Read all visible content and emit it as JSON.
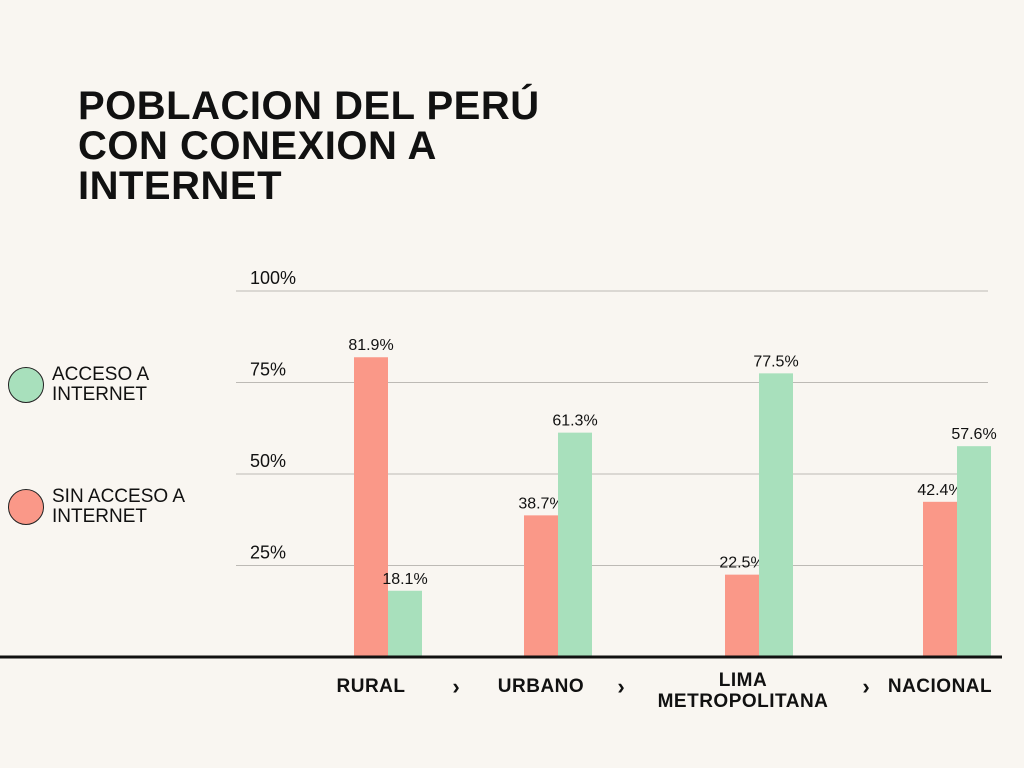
{
  "title_lines": [
    "POBLACION DEL PERÚ",
    "CON CONEXION A",
    "INTERNET"
  ],
  "colors": {
    "acceso": "#a8e0bc",
    "sin_acceso": "#fa9888",
    "gridline": "#bdbab5",
    "axis": "#111111"
  },
  "legend": [
    {
      "series": "acceso",
      "lines": [
        "ACCESO A",
        "INTERNET"
      ]
    },
    {
      "series": "sin_acceso",
      "lines": [
        "SIN ACCESO A",
        "INTERNET"
      ]
    }
  ],
  "separator_glyph": "›",
  "chart_data": {
    "type": "bar",
    "title": "POBLACION DEL PERÚ CON CONEXION A INTERNET",
    "xlabel": "",
    "ylabel": "",
    "ylim": [
      0,
      100
    ],
    "yticks": [
      {
        "value": 25,
        "label": "25%"
      },
      {
        "value": 50,
        "label": "50%"
      },
      {
        "value": 75,
        "label": "75%"
      },
      {
        "value": 100,
        "label": "100%"
      }
    ],
    "grid": true,
    "legend_position": "left",
    "categories": [
      {
        "lines": [
          "RURAL"
        ]
      },
      {
        "lines": [
          "URBANO"
        ]
      },
      {
        "lines": [
          "LIMA",
          "METROPOLITANA"
        ]
      },
      {
        "lines": [
          "NACIONAL"
        ]
      }
    ],
    "series": [
      {
        "key": "sin_acceso",
        "name": "SIN ACCESO A INTERNET",
        "values": [
          81.9,
          38.7,
          22.5,
          42.4
        ],
        "labels": [
          "81.9%",
          "38.7%",
          "22.5%",
          "42.4%"
        ]
      },
      {
        "key": "acceso",
        "name": "ACCESO A INTERNET",
        "values": [
          18.1,
          61.3,
          77.5,
          57.6
        ],
        "labels": [
          "18.1%",
          "61.3%",
          "77.5%",
          "57.6%"
        ]
      }
    ]
  }
}
